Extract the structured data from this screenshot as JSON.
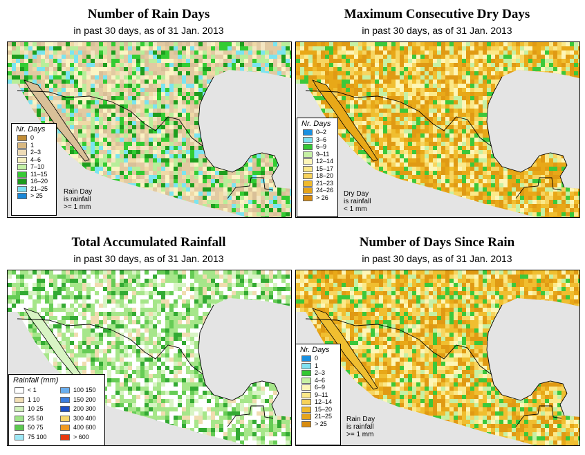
{
  "colors": {
    "ocean": "#e4e4e4",
    "border": "#000000"
  },
  "panels": [
    {
      "title": "Number of Rain Days",
      "subtitle": "in past 30 days, as of  31 Jan. 2013",
      "palette": [
        "#e2caa2",
        "#e2caa2",
        "#d9c098",
        "#f3e6c2",
        "#efd9a6",
        "#fbf4c4",
        "#b8ee9a",
        "#33cc33",
        "#1e9e1e",
        "#7be4f0"
      ],
      "legend": {
        "title": "Nr. Days",
        "items": [
          {
            "label": "0",
            "color": "#c28d36"
          },
          {
            "label": "1",
            "color": "#d9b880"
          },
          {
            "label": "2–3",
            "color": "#efdcb6"
          },
          {
            "label": "4–6",
            "color": "#f8f2c2"
          },
          {
            "label": "7–10",
            "color": "#c4f2a6"
          },
          {
            "label": "11–15",
            "color": "#38c936"
          },
          {
            "label": "16–20",
            "color": "#1c9a1c"
          },
          {
            "label": "21–25",
            "color": "#7ee0f2"
          },
          {
            "label": "> 25",
            "color": "#1a88d8"
          }
        ]
      },
      "note": [
        "Rain Day",
        "is rainfall",
        ">= 1 mm"
      ]
    },
    {
      "title": "Maximum Consecutive Dry Days",
      "subtitle": "in past 30 days, as of  31 Jan. 2013",
      "palette": [
        "#e09a14",
        "#e09a14",
        "#e8a818",
        "#f0be30",
        "#f7d560",
        "#fbe98a",
        "#fdf6b8",
        "#c6f0a4",
        "#3cc83a",
        "#e8a818"
      ],
      "legend": {
        "title": "Nr. Days",
        "items": [
          {
            "label": "0–2",
            "color": "#1a90e0"
          },
          {
            "label": "3–6",
            "color": "#80e2f2"
          },
          {
            "label": "6–9",
            "color": "#33c833"
          },
          {
            "label": "9–11",
            "color": "#c6f0a4"
          },
          {
            "label": "12–14",
            "color": "#fdf6b8"
          },
          {
            "label": "15–17",
            "color": "#fbe98a"
          },
          {
            "label": "18–20",
            "color": "#f7d25a"
          },
          {
            "label": "21–23",
            "color": "#f0ba2c"
          },
          {
            "label": "24–26",
            "color": "#e6a41a"
          },
          {
            "label": "> 26",
            "color": "#d88c10"
          }
        ]
      },
      "note": [
        "Dry Day",
        "is rainfall",
        "< 1 mm"
      ]
    },
    {
      "title": "Total Accumulated Rainfall",
      "subtitle": "in past 30 days, as of  31 Jan. 2013",
      "palette": [
        "#ffffff",
        "#ffffff",
        "#d8f4c4",
        "#a6e68a",
        "#a6e68a",
        "#66cc55",
        "#33aa33",
        "#f0dcb0",
        "#ffffff",
        "#a6e68a"
      ],
      "legend": {
        "title": "Rainfall (mm)",
        "items": [
          {
            "label": "< 1",
            "color": "#ffffff"
          },
          {
            "label": "1    10",
            "color": "#f2dfb4"
          },
          {
            "label": "10    25",
            "color": "#d2f2bc"
          },
          {
            "label": "25    50",
            "color": "#a0e486"
          },
          {
            "label": "50    75",
            "color": "#5cc850"
          },
          {
            "label": "75    100",
            "color": "#9ee8f6"
          },
          {
            "label": "100    150",
            "color": "#6aaeee"
          },
          {
            "label": "150    200",
            "color": "#3a7ee0"
          },
          {
            "label": "200    300",
            "color": "#1c50c8"
          },
          {
            "label": "300    400",
            "color": "#f7d56a"
          },
          {
            "label": "400    600",
            "color": "#f09a20"
          },
          {
            "label": "> 600",
            "color": "#e83a10"
          }
        ]
      },
      "note": []
    },
    {
      "title": "Number of Days Since Rain",
      "subtitle": "in past 30 days, as of  31 Jan. 2013",
      "palette": [
        "#e09a14",
        "#e8a818",
        "#f0be30",
        "#f7d560",
        "#fbe98a",
        "#fdf6b8",
        "#c6f0a4",
        "#3cc83a",
        "#e09a14",
        "#f0be30"
      ],
      "legend": {
        "title": "Nr. Days",
        "items": [
          {
            "label": "0",
            "color": "#1a90e0"
          },
          {
            "label": "1",
            "color": "#80e2f2"
          },
          {
            "label": "2–3",
            "color": "#33c833"
          },
          {
            "label": "4–6",
            "color": "#c6f0a4"
          },
          {
            "label": "6–9",
            "color": "#fdf6b8"
          },
          {
            "label": "9–11",
            "color": "#fbe98a"
          },
          {
            "label": "12–14",
            "color": "#f7d25a"
          },
          {
            "label": "15–20",
            "color": "#f0ba2c"
          },
          {
            "label": "21–25",
            "color": "#e6a41a"
          },
          {
            "label": "> 25",
            "color": "#d88c10"
          }
        ]
      },
      "note": [
        "Rain Day",
        "is rainfall",
        ">= 1 mm"
      ]
    }
  ]
}
